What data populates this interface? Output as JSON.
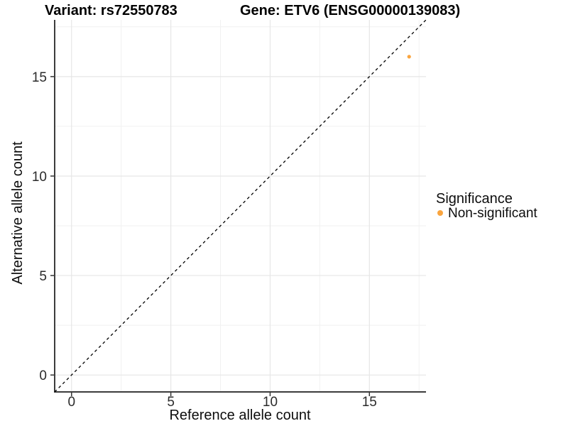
{
  "chart_data": {
    "type": "scatter",
    "titles": {
      "variant": "Variant: rs72550783",
      "gene": "Gene: ETV6 (ENSG00000139083)"
    },
    "xlabel": "Reference allele count",
    "ylabel": "Alternative allele count",
    "x_ticks": [
      0,
      5,
      10,
      15
    ],
    "y_ticks": [
      0,
      5,
      10,
      15
    ],
    "x_minor_ticks": [
      2.5,
      7.5,
      12.5,
      17.5
    ],
    "y_minor_ticks": [
      2.5,
      7.5,
      12.5,
      17.5
    ],
    "xlim": [
      -0.85,
      17.85
    ],
    "ylim": [
      -0.85,
      17.85
    ],
    "grid": "major+minor",
    "points": [
      {
        "x": 17,
        "y": 16,
        "series": "Non-significant"
      }
    ],
    "identity_line": {
      "slope": 1,
      "intercept": 0,
      "style": "dashed"
    },
    "legend": {
      "position": "right",
      "title": "Significance",
      "items": [
        {
          "label": "Non-significant",
          "color": "#FAA53E"
        }
      ]
    },
    "colors": {
      "point": "#FAA53E",
      "axis_line": "#3c3c3c",
      "tick_mark": "#333333",
      "grid_major": "#e6e6e6",
      "grid_minor": "#f1f1f1",
      "identity_line": "#000000",
      "background": "#ffffff"
    }
  }
}
